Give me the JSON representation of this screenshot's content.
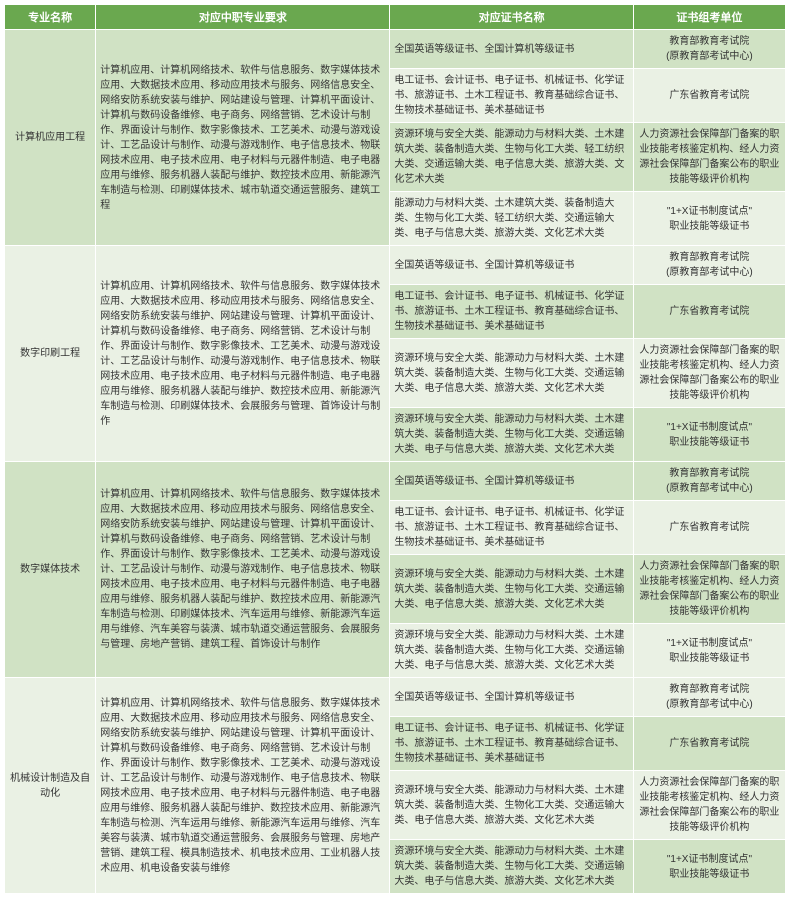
{
  "headers": {
    "c0": "专业名称",
    "c1": "对应中职专业要求",
    "c2": "对应证书名称",
    "c3": "证书组考单位"
  },
  "majors": [
    {
      "name": "计算机应用工程",
      "req": "计算机应用、计算机网络技术、软件与信息服务、数字媒体技术应用、大数据技术应用、移动应用技术与服务、网络信息安全、网络安防系统安装与维护、网站建设与管理、计算机平面设计、计算机与数码设备维修、电子商务、网络营销、艺术设计与制作、界面设计与制作、数字影像技术、工艺美术、动漫与游戏设计、工艺品设计与制作、动漫与游戏制作、电子信息技术、物联网技术应用、电子技术应用、电子材料与元器件制造、电子电器应用与维修、服务机器人装配与维护、数控技术应用、新能源汽车制造与检测、印刷媒体技术、城市轨道交通运营服务、建筑工程",
      "rows": [
        {
          "cert": "全国英语等级证书、全国计算机等级证书",
          "org": "教育部教育考试院\n(原教育部考试中心)"
        },
        {
          "cert": "电工证书、会计证书、电子证书、机械证书、化学证书、旅游证书、土木工程证书、教育基础综合证书、生物技术基础证书、美术基础证书",
          "org": "广东省教育考试院"
        },
        {
          "cert": "资源环境与安全大类、能源动力与材料大类、土木建筑大类、装备制造大类、生物与化工大类、轻工纺织大类、交通运输大类、电子信息大类、旅游大类、文化艺术大类",
          "org": "人力资源社会保障部门备案的职业技能考核鉴定机构、经人力资源社会保障部门备案公布的职业技能等级评价机构"
        },
        {
          "cert": "能源动力与材料大类、土木建筑大类、装备制造大类、生物与化工大类、轻工纺织大类、交通运输大类、电子与信息大类、旅游大类、文化艺术大类",
          "org": "\"1+X证书制度试点\"\n职业技能等级证书"
        }
      ]
    },
    {
      "name": "数字印刷工程",
      "req": "计算机应用、计算机网络技术、软件与信息服务、数字媒体技术应用、大数据技术应用、移动应用技术与服务、网络信息安全、网络安防系统安装与维护、网站建设与管理、计算机平面设计、计算机与数码设备维修、电子商务、网络营销、艺术设计与制作、界面设计与制作、数字影像技术、工艺美术、动漫与游戏设计、工艺品设计与制作、动漫与游戏制作、电子信息技术、物联网技术应用、电子技术应用、电子材料与元器件制造、电子电器应用与维修、服务机器人装配与维护、数控技术应用、新能源汽车制造与检测、印刷媒体技术、会展服务与管理、首饰设计与制作",
      "rows": [
        {
          "cert": "全国英语等级证书、全国计算机等级证书",
          "org": "教育部教育考试院\n(原教育部考试中心)"
        },
        {
          "cert": "电工证书、会计证书、电子证书、机械证书、化学证书、旅游证书、土木工程证书、教育基础综合证书、生物技术基础证书、美术基础证书",
          "org": "广东省教育考试院"
        },
        {
          "cert": "资源环境与安全大类、能源动力与材料大类、土木建筑大类、装备制造大类、生物与化工大类、交通运输大类、电子信息大类、旅游大类、文化艺术大类",
          "org": "人力资源社会保障部门备案的职业技能考核鉴定机构、经人力资源社会保障部门备案公布的职业技能等级评价机构"
        },
        {
          "cert": "资源环境与安全大类、能源动力与材料大类、土木建筑大类、装备制造大类、生物与化工大类、交通运输大类、电子与信息大类、旅游大类、文化艺术大类",
          "org": "\"1+X证书制度试点\"\n职业技能等级证书"
        }
      ]
    },
    {
      "name": "数字媒体技术",
      "req": "计算机应用、计算机网络技术、软件与信息服务、数字媒体技术应用、大数据技术应用、移动应用技术与服务、网络信息安全、网络安防系统安装与维护、网站建设与管理、计算机平面设计、计算机与数码设备维修、电子商务、网络营销、艺术设计与制作、界面设计与制作、数字影像技术、工艺美术、动漫与游戏设计、工艺品设计与制作、动漫与游戏制作、电子信息技术、物联网技术应用、电子技术应用、电子材料与元器件制造、电子电器应用与维修、服务机器人装配与维护、数控技术应用、新能源汽车制造与检测、印刷媒体技术、汽车运用与维修、新能源汽车运用与维修、汽车美容与装潢、城市轨道交通运营服务、会展服务与管理、房地产营销、建筑工程、首饰设计与制作",
      "rows": [
        {
          "cert": "全国英语等级证书、全国计算机等级证书",
          "org": "教育部教育考试院\n(原教育部考试中心)"
        },
        {
          "cert": "电工证书、会计证书、电子证书、机械证书、化学证书、旅游证书、土木工程证书、教育基础综合证书、生物技术基础证书、美术基础证书",
          "org": "广东省教育考试院"
        },
        {
          "cert": "资源环境与安全大类、能源动力与材料大类、土木建筑大类、装备制造大类、生物与化工大类、交通运输大类、电子信息大类、旅游大类、文化艺术大类",
          "org": "人力资源社会保障部门备案的职业技能考核鉴定机构、经人力资源社会保障部门备案公布的职业技能等级评价机构"
        },
        {
          "cert": "资源环境与安全大类、能源动力与材料大类、土木建筑大类、装备制造大类、生物与化工大类、交通运输大类、电子与信息大类、旅游大类、文化艺术大类",
          "org": "\"1+X证书制度试点\"\n职业技能等级证书"
        }
      ]
    },
    {
      "name": "机械设计制造及自动化",
      "req": "计算机应用、计算机网络技术、软件与信息服务、数字媒体技术应用、大数据技术应用、移动应用技术与服务、网络信息安全、网络安防系统安装与维护、网站建设与管理、计算机平面设计、计算机与数码设备维修、电子商务、网络营销、艺术设计与制作、界面设计与制作、数字影像技术、工艺美术、动漫与游戏设计、工艺品设计与制作、动漫与游戏制作、电子信息技术、物联网技术应用、电子技术应用、电子材料与元器件制造、电子电器应用与维修、服务机器人装配与维护、数控技术应用、新能源汽车制造与检测、汽车运用与维修、新能源汽车运用与维修、汽车美容与装潢、城市轨道交通运营服务、会展服务与管理、房地产营销、建筑工程、模具制造技术、机电技术应用、工业机器人技术应用、机电设备安装与维修",
      "rows": [
        {
          "cert": "全国英语等级证书、全国计算机等级证书",
          "org": "教育部教育考试院\n(原教育部考试中心)"
        },
        {
          "cert": "电工证书、会计证书、电子证书、机械证书、化学证书、旅游证书、土木工程证书、教育基础综合证书、生物技术基础证书、美术基础证书",
          "org": "广东省教育考试院"
        },
        {
          "cert": "资源环境与安全大类、能源动力与材料大类、土木建筑大类、装备制造大类、生物化工大类、交通运输大类、电子信息大类、旅游大类、文化艺术大类",
          "org": "人力资源社会保障部门备案的职业技能考核鉴定机构、经人力资源社会保障部门备案公布的职业技能等级评价机构"
        },
        {
          "cert": "资源环境与安全大类、能源动力与材料大类、土木建筑大类、装备制造大类、生物与化工大类、交通运输大类、电子与信息大类、旅游大类、文化艺术大类",
          "org": "\"1+X证书制度试点\"\n职业技能等级证书"
        }
      ]
    }
  ]
}
